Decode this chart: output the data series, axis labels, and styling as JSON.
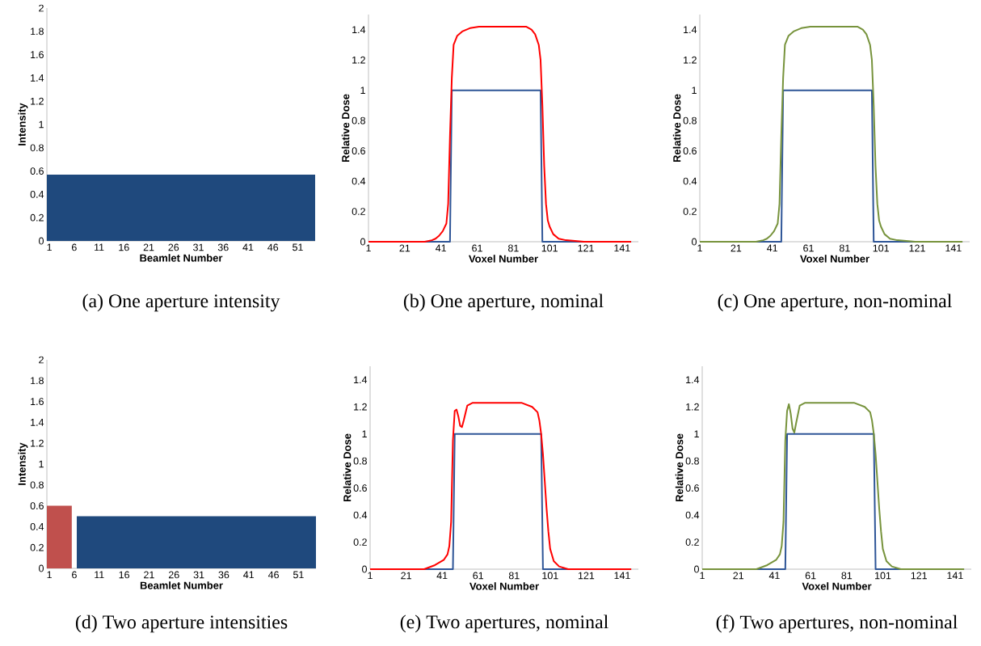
{
  "chart_data": [
    {
      "type": "area",
      "title": "(a) One aperture intensity",
      "xlabel": "Beamlet Number",
      "ylabel": "Intensity",
      "xlim": [
        0.5,
        54.5
      ],
      "xticks": [
        1,
        6,
        11,
        16,
        21,
        26,
        31,
        36,
        41,
        46,
        51
      ],
      "ylim": [
        0,
        2
      ],
      "yticks": [
        0,
        0.2,
        0.4,
        0.6,
        0.8,
        1,
        1.2,
        1.4,
        1.6,
        1.8,
        2
      ],
      "series": [
        {
          "color": "#1f497d",
          "x": [
            0.5,
            54.5
          ],
          "values": [
            0.57,
            0.57
          ]
        }
      ]
    },
    {
      "type": "line",
      "title": "(b) One aperture, nominal",
      "xlabel": "Voxel Number",
      "ylabel": "Relative Dose",
      "xlim": [
        1,
        150
      ],
      "xticks": [
        1,
        21,
        41,
        61,
        81,
        101,
        121,
        141
      ],
      "ylim": [
        0,
        1.5
      ],
      "yticks": [
        0,
        0.2,
        0.4,
        0.6,
        0.8,
        1,
        1.2,
        1.4
      ],
      "series": [
        {
          "color": "#2e5597",
          "x": [
            1,
            46,
            47,
            96,
            97,
            146
          ],
          "values": [
            0,
            0,
            1,
            1,
            0,
            0
          ]
        },
        {
          "color": "#ff0000",
          "x": [
            1,
            20,
            32,
            36,
            38,
            40,
            42,
            44,
            45,
            46,
            47,
            48,
            50,
            53,
            57,
            62,
            70,
            80,
            88,
            91,
            93,
            95,
            96,
            97,
            98,
            99,
            100,
            101,
            103,
            106,
            110,
            120,
            146
          ],
          "values": [
            0,
            0,
            0,
            0.01,
            0.02,
            0.04,
            0.07,
            0.12,
            0.25,
            0.7,
            1.08,
            1.3,
            1.36,
            1.39,
            1.41,
            1.42,
            1.42,
            1.42,
            1.42,
            1.4,
            1.37,
            1.3,
            1.2,
            0.9,
            0.5,
            0.25,
            0.14,
            0.1,
            0.05,
            0.02,
            0.01,
            0,
            0
          ]
        }
      ]
    },
    {
      "type": "line",
      "title": "(c) One aperture, non-nominal",
      "xlabel": "Voxel Number",
      "ylabel": "Relative Dose",
      "xlim": [
        1,
        150
      ],
      "xticks": [
        1,
        21,
        41,
        61,
        81,
        101,
        121,
        141
      ],
      "ylim": [
        0,
        1.5
      ],
      "yticks": [
        0,
        0.2,
        0.4,
        0.6,
        0.8,
        1,
        1.2,
        1.4
      ],
      "series": [
        {
          "color": "#2e5597",
          "x": [
            1,
            46,
            47,
            96,
            97,
            146
          ],
          "values": [
            0,
            0,
            1,
            1,
            0,
            0
          ]
        },
        {
          "color": "#77933c",
          "x": [
            1,
            20,
            32,
            36,
            38,
            40,
            42,
            44,
            45,
            46,
            47,
            48,
            50,
            53,
            57,
            62,
            70,
            80,
            88,
            91,
            93,
            95,
            96,
            97,
            98,
            99,
            100,
            101,
            103,
            106,
            110,
            120,
            146
          ],
          "values": [
            0,
            0,
            0,
            0.01,
            0.02,
            0.04,
            0.07,
            0.12,
            0.25,
            0.7,
            1.08,
            1.3,
            1.36,
            1.39,
            1.41,
            1.42,
            1.42,
            1.42,
            1.42,
            1.4,
            1.37,
            1.3,
            1.2,
            0.9,
            0.5,
            0.25,
            0.14,
            0.1,
            0.05,
            0.02,
            0.01,
            0,
            0
          ]
        }
      ]
    },
    {
      "type": "area",
      "title": "(d) Two aperture intensities",
      "xlabel": "Beamlet Number",
      "ylabel": "Intensity",
      "xlim": [
        0.5,
        54.5
      ],
      "xticks": [
        1,
        6,
        11,
        16,
        21,
        26,
        31,
        36,
        41,
        46,
        51
      ],
      "ylim": [
        0,
        2
      ],
      "yticks": [
        0,
        0.2,
        0.4,
        0.6,
        0.8,
        1,
        1.2,
        1.4,
        1.6,
        1.8,
        2
      ],
      "series": [
        {
          "color": "#c0504d",
          "x": [
            0.5,
            5.5
          ],
          "values": [
            0.6,
            0.6
          ]
        },
        {
          "color": "#1f497d",
          "x": [
            6.5,
            54.5
          ],
          "values": [
            0.5,
            0.5
          ]
        }
      ]
    },
    {
      "type": "line",
      "title": "(e) Two apertures, nominal",
      "xlabel": "Voxel Number",
      "ylabel": "Relative Dose",
      "xlim": [
        1,
        150
      ],
      "xticks": [
        1,
        21,
        41,
        61,
        81,
        101,
        121,
        141
      ],
      "ylim": [
        0,
        1.5
      ],
      "yticks": [
        0,
        0.2,
        0.4,
        0.6,
        0.8,
        1,
        1.2,
        1.4
      ],
      "series": [
        {
          "color": "#2e5597",
          "x": [
            1,
            47,
            48,
            96,
            97,
            146
          ],
          "values": [
            0,
            0,
            1,
            1,
            0,
            0
          ]
        },
        {
          "color": "#ff0000",
          "x": [
            1,
            20,
            31,
            37,
            42,
            44,
            45,
            46,
            47,
            48,
            49,
            50,
            51,
            52,
            53,
            55,
            58,
            70,
            85,
            91,
            94,
            95,
            96,
            97,
            98,
            99,
            100,
            101,
            103,
            106,
            111,
            146
          ],
          "values": [
            0,
            0,
            0,
            0.03,
            0.07,
            0.11,
            0.17,
            0.35,
            0.95,
            1.17,
            1.18,
            1.13,
            1.06,
            1.05,
            1.1,
            1.21,
            1.23,
            1.23,
            1.23,
            1.2,
            1.16,
            1.1,
            1.0,
            0.85,
            0.65,
            0.45,
            0.28,
            0.15,
            0.06,
            0.02,
            0,
            0
          ]
        }
      ]
    },
    {
      "type": "line",
      "title": "(f) Two apertures, non-nominal",
      "xlabel": "Voxel Number",
      "ylabel": "Relative Dose",
      "xlim": [
        1,
        150
      ],
      "xticks": [
        1,
        21,
        41,
        61,
        81,
        101,
        121,
        141
      ],
      "ylim": [
        0,
        1.5
      ],
      "yticks": [
        0,
        0.2,
        0.4,
        0.6,
        0.8,
        1,
        1.2,
        1.4
      ],
      "series": [
        {
          "color": "#2e5597",
          "x": [
            1,
            47,
            48,
            96,
            97,
            146
          ],
          "values": [
            0,
            0,
            1,
            1,
            0,
            0
          ]
        },
        {
          "color": "#77933c",
          "x": [
            1,
            20,
            31,
            37,
            42,
            44,
            45,
            46,
            47,
            48,
            49,
            50,
            51,
            52,
            53,
            55,
            58,
            70,
            85,
            91,
            94,
            95,
            96,
            97,
            98,
            99,
            100,
            101,
            103,
            106,
            111,
            146
          ],
          "values": [
            0,
            0,
            0,
            0.03,
            0.07,
            0.11,
            0.17,
            0.35,
            0.95,
            1.17,
            1.22,
            1.15,
            1.04,
            1.01,
            1.08,
            1.21,
            1.23,
            1.23,
            1.23,
            1.2,
            1.16,
            1.1,
            1.0,
            0.85,
            0.65,
            0.45,
            0.28,
            0.15,
            0.06,
            0.02,
            0,
            0
          ]
        }
      ]
    }
  ]
}
